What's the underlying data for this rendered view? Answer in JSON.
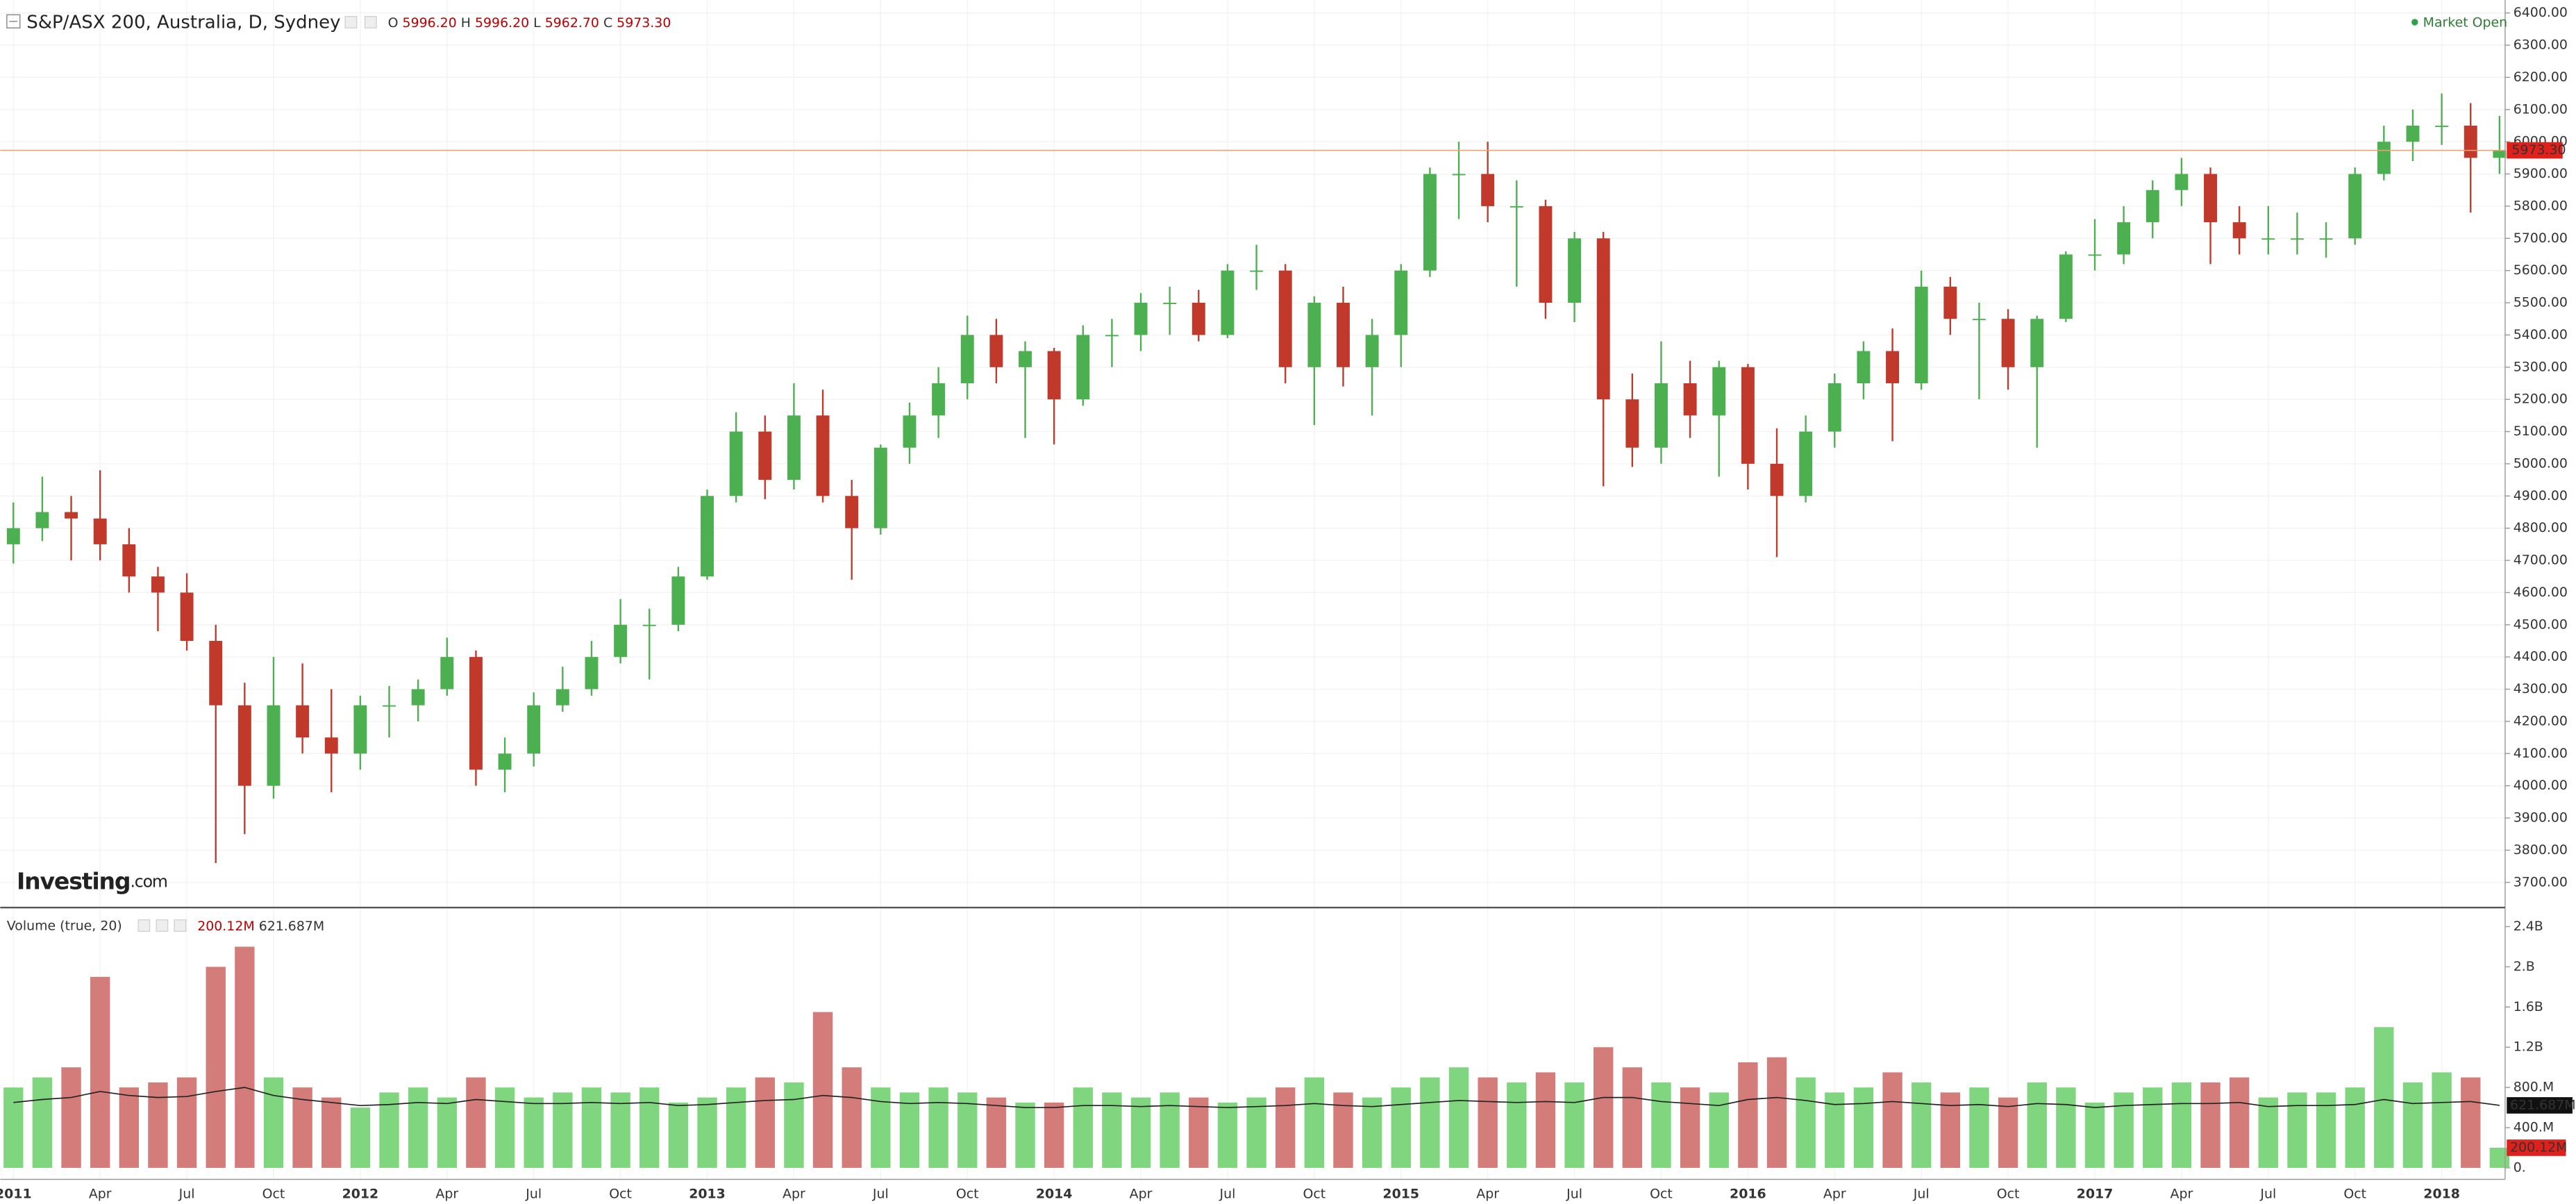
{
  "header": {
    "title": "S&P/ASX 200, Australia, D, Sydney",
    "o": "O",
    "open": "5996.20",
    "h": "H",
    "high": "5996.20",
    "l": "L",
    "low": "5962.70",
    "c": "C",
    "close": "5973.30",
    "market": "Market Open",
    "volume_title": "Volume (true, 20)",
    "volume_value": "200.12M",
    "volume_ma": "621.687M",
    "logo_main": "Investing",
    "logo_suffix": ".com"
  },
  "chart_data": {
    "type": "candlestick",
    "categories": [
      "2011",
      null,
      null,
      "Apr",
      null,
      null,
      "Jul",
      null,
      null,
      "Oct",
      null,
      null,
      "2012",
      null,
      null,
      "Apr",
      null,
      null,
      "Jul",
      null,
      null,
      "Oct",
      null,
      null,
      "2013",
      null,
      null,
      "Apr",
      null,
      null,
      "Jul",
      null,
      null,
      "Oct",
      null,
      null,
      "2014",
      null,
      null,
      "Apr",
      null,
      null,
      "Jul",
      null,
      null,
      "Oct",
      null,
      null,
      "2015",
      null,
      null,
      "Apr",
      null,
      null,
      "Jul",
      null,
      null,
      "Oct",
      null,
      null,
      "2016",
      null,
      null,
      "Apr",
      null,
      null,
      "Jul",
      null,
      null,
      "Oct",
      null,
      null,
      "2017",
      null,
      null,
      "Apr",
      null,
      null,
      "Jul",
      null,
      null,
      "Oct",
      null,
      null,
      "2018",
      null,
      null
    ],
    "ohlc": [
      [
        4750,
        4880,
        4690,
        4800
      ],
      [
        4800,
        4960,
        4760,
        4850
      ],
      [
        4850,
        4900,
        4700,
        4830
      ],
      [
        4830,
        4980,
        4700,
        4750
      ],
      [
        4750,
        4800,
        4600,
        4650
      ],
      [
        4650,
        4680,
        4480,
        4600
      ],
      [
        4600,
        4660,
        4420,
        4450
      ],
      [
        4450,
        4500,
        3760,
        4250
      ],
      [
        4250,
        4320,
        3850,
        4000
      ],
      [
        4000,
        4400,
        3960,
        4250
      ],
      [
        4250,
        4380,
        4100,
        4150
      ],
      [
        4150,
        4300,
        3980,
        4100
      ],
      [
        4100,
        4280,
        4050,
        4250
      ],
      [
        4250,
        4310,
        4150,
        4250
      ],
      [
        4250,
        4330,
        4200,
        4300
      ],
      [
        4300,
        4460,
        4280,
        4400
      ],
      [
        4400,
        4420,
        4000,
        4050
      ],
      [
        4050,
        4150,
        3980,
        4100
      ],
      [
        4100,
        4290,
        4060,
        4250
      ],
      [
        4250,
        4370,
        4230,
        4300
      ],
      [
        4300,
        4450,
        4280,
        4400
      ],
      [
        4400,
        4580,
        4380,
        4500
      ],
      [
        4500,
        4550,
        4330,
        4500
      ],
      [
        4500,
        4680,
        4480,
        4650
      ],
      [
        4650,
        4920,
        4640,
        4900
      ],
      [
        4900,
        5160,
        4880,
        5100
      ],
      [
        5100,
        5150,
        4890,
        4950
      ],
      [
        4950,
        5250,
        4920,
        5150
      ],
      [
        5150,
        5230,
        4880,
        4900
      ],
      [
        4900,
        4950,
        4640,
        4800
      ],
      [
        4800,
        5060,
        4780,
        5050
      ],
      [
        5050,
        5190,
        5000,
        5150
      ],
      [
        5150,
        5300,
        5080,
        5250
      ],
      [
        5250,
        5460,
        5200,
        5400
      ],
      [
        5400,
        5450,
        5250,
        5300
      ],
      [
        5300,
        5380,
        5080,
        5350
      ],
      [
        5350,
        5360,
        5060,
        5200
      ],
      [
        5200,
        5430,
        5180,
        5400
      ],
      [
        5400,
        5450,
        5300,
        5400
      ],
      [
        5400,
        5530,
        5350,
        5500
      ],
      [
        5500,
        5550,
        5400,
        5500
      ],
      [
        5500,
        5540,
        5380,
        5400
      ],
      [
        5400,
        5620,
        5390,
        5600
      ],
      [
        5600,
        5680,
        5540,
        5600
      ],
      [
        5600,
        5620,
        5250,
        5300
      ],
      [
        5300,
        5520,
        5120,
        5500
      ],
      [
        5500,
        5550,
        5240,
        5300
      ],
      [
        5300,
        5450,
        5150,
        5400
      ],
      [
        5400,
        5620,
        5300,
        5600
      ],
      [
        5600,
        5920,
        5580,
        5900
      ],
      [
        5900,
        6000,
        5760,
        5900
      ],
      [
        5900,
        6000,
        5750,
        5800
      ],
      [
        5800,
        5880,
        5550,
        5800
      ],
      [
        5800,
        5820,
        5450,
        5500
      ],
      [
        5500,
        5720,
        5440,
        5700
      ],
      [
        5700,
        5720,
        4930,
        5200
      ],
      [
        5200,
        5280,
        4990,
        5050
      ],
      [
        5050,
        5380,
        5000,
        5250
      ],
      [
        5250,
        5320,
        5080,
        5150
      ],
      [
        5150,
        5320,
        4960,
        5300
      ],
      [
        5300,
        5310,
        4920,
        5000
      ],
      [
        5000,
        5110,
        4710,
        4900
      ],
      [
        4900,
        5150,
        4880,
        5100
      ],
      [
        5100,
        5280,
        5050,
        5250
      ],
      [
        5250,
        5380,
        5200,
        5350
      ],
      [
        5350,
        5420,
        5070,
        5250
      ],
      [
        5250,
        5600,
        5230,
        5550
      ],
      [
        5550,
        5580,
        5400,
        5450
      ],
      [
        5450,
        5500,
        5200,
        5450
      ],
      [
        5450,
        5480,
        5230,
        5300
      ],
      [
        5300,
        5460,
        5050,
        5450
      ],
      [
        5450,
        5660,
        5440,
        5650
      ],
      [
        5650,
        5760,
        5600,
        5650
      ],
      [
        5650,
        5800,
        5620,
        5750
      ],
      [
        5750,
        5880,
        5700,
        5850
      ],
      [
        5850,
        5950,
        5800,
        5900
      ],
      [
        5900,
        5920,
        5620,
        5750
      ],
      [
        5750,
        5800,
        5650,
        5700
      ],
      [
        5700,
        5800,
        5650,
        5700
      ],
      [
        5700,
        5780,
        5650,
        5700
      ],
      [
        5700,
        5750,
        5640,
        5700
      ],
      [
        5700,
        5920,
        5680,
        5900
      ],
      [
        5900,
        6050,
        5880,
        6000
      ],
      [
        6000,
        6100,
        5940,
        6050
      ],
      [
        6050,
        6150,
        5990,
        6050
      ],
      [
        6050,
        6120,
        5780,
        5950
      ],
      [
        5950,
        6080,
        5900,
        5973.3
      ]
    ],
    "last_price_label": "5973.30",
    "volume": [
      800,
      900,
      1000,
      1900,
      800,
      850,
      900,
      2000,
      2200,
      900,
      800,
      700,
      600,
      750,
      800,
      700,
      900,
      800,
      700,
      750,
      800,
      750,
      800,
      650,
      700,
      800,
      900,
      850,
      1550,
      1000,
      800,
      750,
      800,
      750,
      700,
      650,
      650,
      800,
      750,
      700,
      750,
      700,
      650,
      700,
      800,
      900,
      750,
      700,
      800,
      900,
      1000,
      900,
      850,
      950,
      850,
      1200,
      1000,
      850,
      800,
      750,
      1050,
      1100,
      900,
      750,
      800,
      950,
      850,
      750,
      800,
      700,
      850,
      800,
      650,
      750,
      800,
      850,
      850,
      900,
      700,
      750,
      750,
      800,
      1400,
      850,
      950,
      900,
      200.12
    ],
    "volume_ma": [
      650,
      680,
      700,
      760,
      720,
      700,
      710,
      760,
      800,
      720,
      680,
      650,
      620,
      630,
      650,
      640,
      680,
      660,
      640,
      640,
      650,
      640,
      650,
      620,
      630,
      650,
      670,
      680,
      720,
      700,
      660,
      640,
      650,
      640,
      620,
      600,
      600,
      620,
      620,
      610,
      620,
      610,
      600,
      610,
      620,
      640,
      620,
      610,
      630,
      650,
      670,
      660,
      650,
      660,
      650,
      700,
      700,
      660,
      640,
      620,
      680,
      700,
      670,
      630,
      640,
      660,
      640,
      620,
      630,
      610,
      640,
      630,
      600,
      620,
      630,
      640,
      640,
      650,
      610,
      620,
      620,
      630,
      680,
      640,
      650,
      660,
      621.687
    ],
    "ylim": [
      3650,
      6430
    ],
    "yticks": [
      {
        "value": 3700,
        "label": "3700.00"
      },
      {
        "value": 3800,
        "label": "3800.00"
      },
      {
        "value": 3900,
        "label": "3900.00"
      },
      {
        "value": 4000,
        "label": "4000.00"
      },
      {
        "value": 4100,
        "label": "4100.00"
      },
      {
        "value": 4200,
        "label": "4200.00"
      },
      {
        "value": 4300,
        "label": "4300.00"
      },
      {
        "value": 4400,
        "label": "4400.00"
      },
      {
        "value": 4500,
        "label": "4500.00"
      },
      {
        "value": 4600,
        "label": "4600.00"
      },
      {
        "value": 4700,
        "label": "4700.00"
      },
      {
        "value": 4800,
        "label": "4800.00"
      },
      {
        "value": 4900,
        "label": "4900.00"
      },
      {
        "value": 5000,
        "label": "5000.00"
      },
      {
        "value": 5100,
        "label": "5100.00"
      },
      {
        "value": 5200,
        "label": "5200.00"
      },
      {
        "value": 5300,
        "label": "5300.00"
      },
      {
        "value": 5400,
        "label": "5400.00"
      },
      {
        "value": 5500,
        "label": "5500.00"
      },
      {
        "value": 5600,
        "label": "5600.00"
      },
      {
        "value": 5700,
        "label": "5700.00"
      },
      {
        "value": 5800,
        "label": "5800.00"
      },
      {
        "value": 5900,
        "label": "5900.00"
      },
      {
        "value": 6000,
        "label": "6000.00"
      },
      {
        "value": 6100,
        "label": "6100.00"
      },
      {
        "value": 6200,
        "label": "6200.00"
      },
      {
        "value": 6300,
        "label": "6300.00"
      },
      {
        "value": 6400,
        "label": "6400.00"
      }
    ],
    "y2lim": [
      0,
      2500
    ],
    "y2ticks": [
      {
        "value": 0,
        "label": "0."
      },
      {
        "value": 400,
        "label": "400.M"
      },
      {
        "value": 800,
        "label": "800.M"
      },
      {
        "value": 1200,
        "label": "1.2B"
      },
      {
        "value": 1600,
        "label": "1.6B"
      },
      {
        "value": 2000,
        "label": "2.B"
      },
      {
        "value": 2400,
        "label": "2.4B"
      }
    ],
    "up_color": "#4caf50",
    "down_color": "#c0392b",
    "vol_up_color": "#7fd67f",
    "vol_down_color": "#d47c7a",
    "ma_color": "#222222",
    "price_line_color": "#f0a070",
    "grid": true
  }
}
